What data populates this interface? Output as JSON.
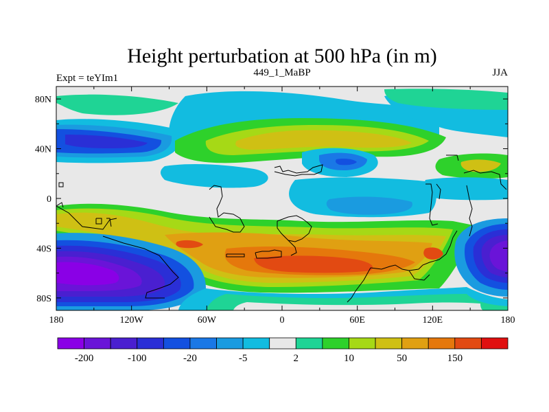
{
  "chart_data": {
    "type": "heatmap",
    "title": "Height perturbation at 500 hPa (in m)",
    "subtitle_left": "Expt = teYIm1",
    "subtitle_center": "449_1_MaBP",
    "subtitle_right": "JJA",
    "x_axis": {
      "range": [
        -180,
        180
      ],
      "ticks": [
        {
          "value": -180,
          "label": "180"
        },
        {
          "value": -120,
          "label": "120W"
        },
        {
          "value": -60,
          "label": "60W"
        },
        {
          "value": 0,
          "label": "0"
        },
        {
          "value": 60,
          "label": "60E"
        },
        {
          "value": 120,
          "label": "120E"
        },
        {
          "value": 180,
          "label": "180"
        }
      ]
    },
    "y_axis": {
      "range": [
        -90,
        90
      ],
      "ticks": [
        {
          "value": 80,
          "label": "80N"
        },
        {
          "value": 40,
          "label": "40N"
        },
        {
          "value": 0,
          "label": "0"
        },
        {
          "value": -40,
          "label": "40S"
        },
        {
          "value": -80,
          "label": "80S"
        }
      ]
    },
    "colorbar": {
      "colors": [
        "#8a00e6",
        "#6a14d8",
        "#4a1fd0",
        "#2a2fd6",
        "#1350e0",
        "#1a78e6",
        "#1a9be0",
        "#12bce0",
        "#e8e8e8",
        "#1fd495",
        "#2ed12b",
        "#a6d916",
        "#cfc014",
        "#e0a012",
        "#e5780c",
        "#e24a12",
        "#e01010"
      ],
      "labels": [
        {
          "boundary": 1,
          "text": "-200"
        },
        {
          "boundary": 3,
          "text": "-100"
        },
        {
          "boundary": 5,
          "text": "-20"
        },
        {
          "boundary": 7,
          "text": "-5"
        },
        {
          "boundary": 9,
          "text": "2"
        },
        {
          "boundary": 11,
          "text": "10"
        },
        {
          "boundary": 13,
          "text": "50"
        },
        {
          "boundary": 15,
          "text": "150"
        }
      ]
    }
  }
}
